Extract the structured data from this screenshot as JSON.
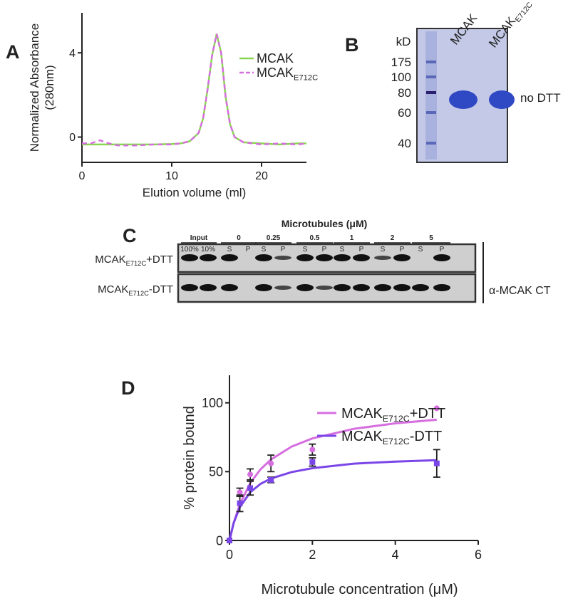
{
  "panel_labels": [
    "A",
    "B",
    "C",
    "D"
  ],
  "chart_data": [
    {
      "type": "line",
      "xlabel": "Elution volume (ml)",
      "ylabel": [
        "Normalized Absorbance",
        "(280nm)"
      ],
      "x": [
        0,
        1,
        2,
        3,
        4,
        6,
        8,
        10,
        11,
        12,
        13,
        13.5,
        14,
        14.5,
        15,
        15.5,
        16,
        16.5,
        17,
        18,
        20,
        22,
        24,
        25
      ],
      "series": [
        {
          "name": [
            "MCAK"
          ],
          "color": "#8ad651",
          "style": "solid",
          "values": [
            -0.35,
            -0.35,
            -0.35,
            -0.35,
            -0.35,
            -0.35,
            -0.35,
            -0.33,
            -0.3,
            -0.2,
            0.2,
            0.9,
            2.3,
            3.9,
            4.9,
            4.0,
            1.9,
            0.6,
            0,
            -0.25,
            -0.3,
            -0.35,
            -0.3,
            -0.3
          ]
        },
        {
          "name": [
            "MCAK",
            "E712C"
          ],
          "color": "#d66ee0",
          "style": "dashed",
          "values": [
            -0.3,
            -0.3,
            -0.15,
            -0.3,
            -0.4,
            -0.4,
            -0.35,
            -0.35,
            -0.3,
            -0.2,
            0.2,
            0.9,
            2.3,
            3.9,
            4.9,
            4.0,
            1.9,
            0.6,
            0,
            -0.25,
            -0.35,
            -0.3,
            -0.35,
            -0.3
          ]
        }
      ],
      "xlim": [
        0,
        25
      ],
      "ylim": [
        -1.2,
        5.9
      ],
      "xticks": [
        0,
        10,
        20
      ],
      "yticks": [
        0,
        4
      ]
    },
    {
      "type": "scatter",
      "xlabel": "Microtubule concentration (μM)",
      "ylabel": "% protein bound",
      "x": [
        0,
        0.25,
        0.5,
        1,
        2,
        5
      ],
      "series": [
        {
          "name": [
            "MCAK",
            "E712C",
            "+DTT"
          ],
          "color": "#d66ee0",
          "marker": "circle",
          "values": [
            0,
            35,
            48,
            56,
            66,
            96
          ],
          "errors": [
            0,
            3,
            4,
            6,
            4,
            null
          ],
          "fit": {
            "x": [
              0,
              0.1,
              0.25,
              0.5,
              0.75,
              1,
              1.5,
              2,
              3,
              4,
              5
            ],
            "values": [
              0,
              12.5,
              26.3,
              41.7,
              51.7,
              58.8,
              68.2,
              74.1,
              81.1,
              85.1,
              87.7
            ]
          }
        },
        {
          "name": [
            "MCAK",
            "E712C",
            "-DTT"
          ],
          "color": "#7b46e8",
          "marker": "square",
          "values": [
            0,
            27,
            38,
            44,
            57,
            56
          ],
          "errors": [
            0,
            6,
            5,
            2,
            3,
            10
          ],
          "fit": {
            "x": [
              0,
              0.1,
              0.25,
              0.5,
              0.75,
              1,
              1.5,
              2,
              3,
              4,
              5
            ],
            "values": [
              0,
              12.6,
              24.2,
              35,
              41.1,
              45,
              49.7,
              52.5,
              55.8,
              57.3,
              58.3
            ]
          }
        }
      ],
      "xlim": [
        0,
        6
      ],
      "ylim": [
        0,
        120
      ],
      "xticks": [
        0,
        2,
        4,
        6
      ],
      "yticks": [
        0,
        50,
        100
      ]
    }
  ],
  "gel_b": {
    "unit": "kD",
    "markers": [
      "175",
      "100",
      "80",
      "60",
      "40"
    ],
    "lanes": [
      [
        "MCAK"
      ],
      [
        "MCAK",
        "E712C"
      ]
    ],
    "condition": "no DTT"
  },
  "gel_c": {
    "title": "Microtubules (μM)",
    "groups": [
      {
        "label": "Input",
        "lanes": [
          "100%",
          "10%"
        ]
      },
      {
        "label": "0",
        "lanes": [
          "S",
          "P"
        ]
      },
      {
        "label": "0.25",
        "lanes": [
          "S",
          "P"
        ]
      },
      {
        "label": "0.5",
        "lanes": [
          "S",
          "P"
        ]
      },
      {
        "label": "1",
        "lanes": [
          "S",
          "P"
        ]
      },
      {
        "label": "2",
        "lanes": [
          "S",
          "P"
        ]
      },
      {
        "label": "5",
        "lanes": [
          "S",
          "P"
        ]
      }
    ],
    "rows": [
      [
        "MCAK",
        "E712C",
        "+DTT"
      ],
      [
        "MCAK",
        "E712C",
        "-DTT"
      ]
    ],
    "antibody": "α-MCAK CT"
  }
}
